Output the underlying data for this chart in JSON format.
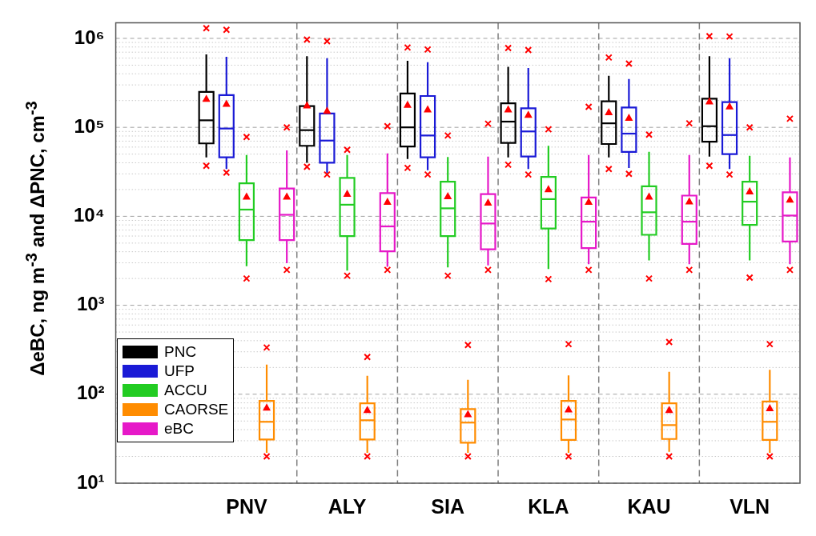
{
  "chart_data": {
    "type": "box",
    "ylabel": "ΔeBC, ng m$^{-3}$ and ΔPNC, cm$^{-3}$",
    "log": "y",
    "grid": true,
    "legend": "bottom left",
    "categories": [
      "PNV",
      "ALY",
      "SIA",
      "KLA",
      "KAU",
      "VLN"
    ],
    "ylim": [
      10,
      1500000
    ],
    "yticks": [
      {
        "value": 10,
        "label": "10¹"
      },
      {
        "value": 20,
        "label": null
      },
      {
        "value": 30,
        "label": null
      },
      {
        "value": 40,
        "label": null
      },
      {
        "value": 50,
        "label": null
      },
      {
        "value": 60,
        "label": null
      },
      {
        "value": 70,
        "label": null
      },
      {
        "value": 80,
        "label": null
      },
      {
        "value": 90,
        "label": null
      },
      {
        "value": 100,
        "label": "10²"
      },
      {
        "value": 200,
        "label": null
      },
      {
        "value": 300,
        "label": null
      },
      {
        "value": 400,
        "label": null
      },
      {
        "value": 500,
        "label": null
      },
      {
        "value": 600,
        "label": null
      },
      {
        "value": 700,
        "label": null
      },
      {
        "value": 800,
        "label": null
      },
      {
        "value": 900,
        "label": null
      },
      {
        "value": 1000,
        "label": "10³"
      },
      {
        "value": 2000,
        "label": null
      },
      {
        "value": 3000,
        "label": null
      },
      {
        "value": 4000,
        "label": null
      },
      {
        "value": 5000,
        "label": null
      },
      {
        "value": 6000,
        "label": null
      },
      {
        "value": 7000,
        "label": null
      },
      {
        "value": 8000,
        "label": null
      },
      {
        "value": 9000,
        "label": null
      },
      {
        "value": 10000,
        "label": "10⁴"
      },
      {
        "value": 20000,
        "label": null
      },
      {
        "value": 30000,
        "label": null
      },
      {
        "value": 40000,
        "label": null
      },
      {
        "value": 50000,
        "label": null
      },
      {
        "value": 60000,
        "label": null
      },
      {
        "value": 70000,
        "label": null
      },
      {
        "value": 80000,
        "label": null
      },
      {
        "value": 90000,
        "label": null
      },
      {
        "value": 100000,
        "label": "10⁵"
      },
      {
        "value": 200000,
        "label": null
      },
      {
        "value": 300000,
        "label": null
      },
      {
        "value": 400000,
        "label": null
      },
      {
        "value": 500000,
        "label": null
      },
      {
        "value": 600000,
        "label": null
      },
      {
        "value": 700000,
        "label": null
      },
      {
        "value": 800000,
        "label": null
      },
      {
        "value": 900000,
        "label": null
      },
      {
        "value": 1000000,
        "label": "10⁶"
      }
    ],
    "series": [
      {
        "name": "PNC",
        "color": "#000000",
        "boxes": [
          {
            "low": 46000,
            "q1": 66000,
            "median": 120000,
            "q3": 250000,
            "high": 660000,
            "mean": 210000,
            "outliers": [
              37000,
              1300000
            ]
          },
          {
            "low": 40000,
            "q1": 62000,
            "median": 93000,
            "q3": 173000,
            "high": 630000,
            "mean": 177000,
            "outliers": [
              36000,
              970000
            ]
          },
          {
            "low": 44000,
            "q1": 61000,
            "median": 100000,
            "q3": 240000,
            "high": 560000,
            "mean": 180000,
            "outliers": [
              35000,
              790000
            ]
          },
          {
            "low": 46000,
            "q1": 67000,
            "median": 116000,
            "q3": 186000,
            "high": 480000,
            "mean": 160000,
            "outliers": [
              38000,
              780000
            ]
          },
          {
            "low": 46000,
            "q1": 65000,
            "median": 111000,
            "q3": 196000,
            "high": 380000,
            "mean": 149000,
            "outliers": [
              34000,
              610000
            ]
          },
          {
            "low": 47000,
            "q1": 69000,
            "median": 103000,
            "q3": 210000,
            "high": 630000,
            "mean": 197000,
            "outliers": [
              37000,
              1060000
            ]
          }
        ]
      },
      {
        "name": "UFP",
        "color": "#1a1ad6",
        "boxes": [
          {
            "low": 34000,
            "q1": 46000,
            "median": 97000,
            "q3": 230000,
            "high": 620000,
            "mean": 185000,
            "outliers": [
              31000,
              1250000
            ]
          },
          {
            "low": 30500,
            "q1": 40000,
            "median": 71000,
            "q3": 143000,
            "high": 600000,
            "mean": 154000,
            "outliers": [
              29500,
              930000
            ]
          },
          {
            "low": 33000,
            "q1": 46000,
            "median": 81000,
            "q3": 225000,
            "high": 540000,
            "mean": 160000,
            "outliers": [
              29500,
              750000
            ]
          },
          {
            "low": 34000,
            "q1": 47000,
            "median": 90000,
            "q3": 164000,
            "high": 465000,
            "mean": 139000,
            "outliers": [
              29500,
              740000
            ]
          },
          {
            "low": 35000,
            "q1": 53000,
            "median": 85000,
            "q3": 167000,
            "high": 350000,
            "mean": 129000,
            "outliers": [
              30000,
              520000
            ]
          },
          {
            "low": 34000,
            "q1": 50000,
            "median": 82000,
            "q3": 192000,
            "high": 600000,
            "mean": 173000,
            "outliers": [
              29500,
              1050000
            ]
          }
        ]
      },
      {
        "name": "ACCU",
        "color": "#22cc22",
        "boxes": [
          {
            "low": 2750,
            "q1": 5400,
            "median": 11900,
            "q3": 23500,
            "high": 49000,
            "mean": 16700,
            "outliers": [
              2000,
              78000
            ]
          },
          {
            "low": 2450,
            "q1": 6000,
            "median": 13500,
            "q3": 27000,
            "high": 49000,
            "mean": 18000,
            "outliers": [
              2150,
              56000
            ]
          },
          {
            "low": 2660,
            "q1": 6000,
            "median": 12300,
            "q3": 24500,
            "high": 46500,
            "mean": 16900,
            "outliers": [
              2150,
              81000
            ]
          },
          {
            "low": 2560,
            "q1": 7300,
            "median": 15600,
            "q3": 27700,
            "high": 62000,
            "mean": 20300,
            "outliers": [
              1970,
              95000
            ]
          },
          {
            "low": 3200,
            "q1": 6200,
            "median": 11100,
            "q3": 21700,
            "high": 53000,
            "mean": 16700,
            "outliers": [
              2000,
              83000
            ]
          },
          {
            "low": 3200,
            "q1": 8000,
            "median": 14600,
            "q3": 24500,
            "high": 48000,
            "mean": 19200,
            "outliers": [
              2050,
              100000
            ]
          }
        ]
      },
      {
        "name": "CAORSE",
        "color": "#ff8c00",
        "boxes": [
          {
            "low": 22,
            "q1": 31,
            "median": 49,
            "q3": 84,
            "high": 215,
            "mean": 71,
            "outliers": [
              20,
              335
            ]
          },
          {
            "low": 22,
            "q1": 31,
            "median": 51,
            "q3": 79,
            "high": 161,
            "mean": 67,
            "outliers": [
              20,
              262
            ]
          },
          {
            "low": 22,
            "q1": 28.5,
            "median": 48,
            "q3": 68,
            "high": 145,
            "mean": 60,
            "outliers": [
              20,
              358
            ]
          },
          {
            "low": 22,
            "q1": 30.7,
            "median": 52,
            "q3": 84,
            "high": 163,
            "mean": 68,
            "outliers": [
              20,
              366
            ]
          },
          {
            "low": 22.5,
            "q1": 31.4,
            "median": 45,
            "q3": 79,
            "high": 179,
            "mean": 67,
            "outliers": [
              20,
              387
            ]
          },
          {
            "low": 22,
            "q1": 30.7,
            "median": 49,
            "q3": 83,
            "high": 188,
            "mean": 70,
            "outliers": [
              20,
              366
            ]
          }
        ]
      },
      {
        "name": "eBC",
        "color": "#e619c8",
        "boxes": [
          {
            "low": 2970,
            "q1": 5400,
            "median": 10400,
            "q3": 20500,
            "high": 55000,
            "mean": 16700,
            "outliers": [
              2500,
              100000
            ]
          },
          {
            "low": 2700,
            "q1": 4050,
            "median": 7700,
            "q3": 18200,
            "high": 51000,
            "mean": 14600,
            "outliers": [
              2500,
              103000
            ]
          },
          {
            "low": 2800,
            "q1": 4250,
            "median": 8300,
            "q3": 17800,
            "high": 47000,
            "mean": 14300,
            "outliers": [
              2500,
              110000
            ]
          },
          {
            "low": 2900,
            "q1": 4400,
            "median": 8700,
            "q3": 16300,
            "high": 49000,
            "mean": 14600,
            "outliers": [
              2500,
              170000
            ]
          },
          {
            "low": 2900,
            "q1": 4900,
            "median": 8700,
            "q3": 17100,
            "high": 49000,
            "mean": 14800,
            "outliers": [
              2500,
              111000
            ]
          },
          {
            "low": 2900,
            "q1": 5200,
            "median": 10200,
            "q3": 18600,
            "high": 46000,
            "mean": 15500,
            "outliers": [
              2500,
              125000
            ]
          }
        ]
      }
    ]
  }
}
